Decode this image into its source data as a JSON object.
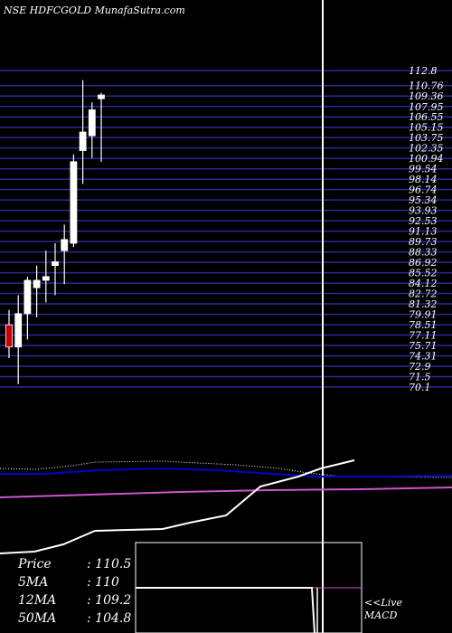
{
  "header": {
    "title": "NSE HDFCGOLD MunafaSutra.com"
  },
  "chart_data": {
    "type": "candlestick",
    "price_levels": [
      "112.8",
      "110.76",
      "109.36",
      "107.95",
      "106.55",
      "105.15",
      "103.75",
      "102.35",
      "100.94",
      "99.54",
      "98.14",
      "96.74",
      "95.34",
      "93.93",
      "92.53",
      "91.13",
      "89.73",
      "88.33",
      "86.92",
      "85.52",
      "84.12",
      "82.72",
      "81.32",
      "79.91",
      "78.51",
      "77.11",
      "75.71",
      "74.31",
      "72.9",
      "71.5",
      "70.1"
    ],
    "candles": [
      {
        "o": 78.5,
        "h": 80.5,
        "l": 74.0,
        "c": 75.5
      },
      {
        "o": 75.5,
        "h": 82.5,
        "l": 70.5,
        "c": 80.0
      },
      {
        "o": 80.0,
        "h": 85.0,
        "l": 76.5,
        "c": 84.5
      },
      {
        "o": 83.5,
        "h": 86.5,
        "l": 79.5,
        "c": 84.5
      },
      {
        "o": 84.5,
        "h": 88.5,
        "l": 81.5,
        "c": 85.0
      },
      {
        "o": 86.5,
        "h": 89.5,
        "l": 82.5,
        "c": 87.0
      },
      {
        "o": 88.5,
        "h": 92.0,
        "l": 84.0,
        "c": 90.0
      },
      {
        "o": 89.5,
        "h": 101.5,
        "l": 89.0,
        "c": 100.5
      },
      {
        "o": 102.0,
        "h": 111.5,
        "l": 97.5,
        "c": 104.5
      },
      {
        "o": 104.0,
        "h": 108.5,
        "l": 101.0,
        "c": 107.5
      },
      {
        "o": 109.0,
        "h": 109.8,
        "l": 100.5,
        "c": 109.5
      }
    ],
    "stats": [
      {
        "label": "Price",
        "value": "110.5"
      },
      {
        "label": "5MA",
        "value": "110"
      },
      {
        "label": "12MA",
        "value": "109.2"
      },
      {
        "label": "50MA",
        "value": "104.8"
      }
    ],
    "macd_label": [
      "<<Live",
      "MACD"
    ],
    "colors": {
      "up": "#ffffff",
      "down": "#cc0000",
      "grid": "#2a2a99",
      "ma_dotted": "#ffffff",
      "ma_blue": "#0000cc",
      "ma_pink": "#cc55cc",
      "ma_white": "#ffffff"
    }
  }
}
